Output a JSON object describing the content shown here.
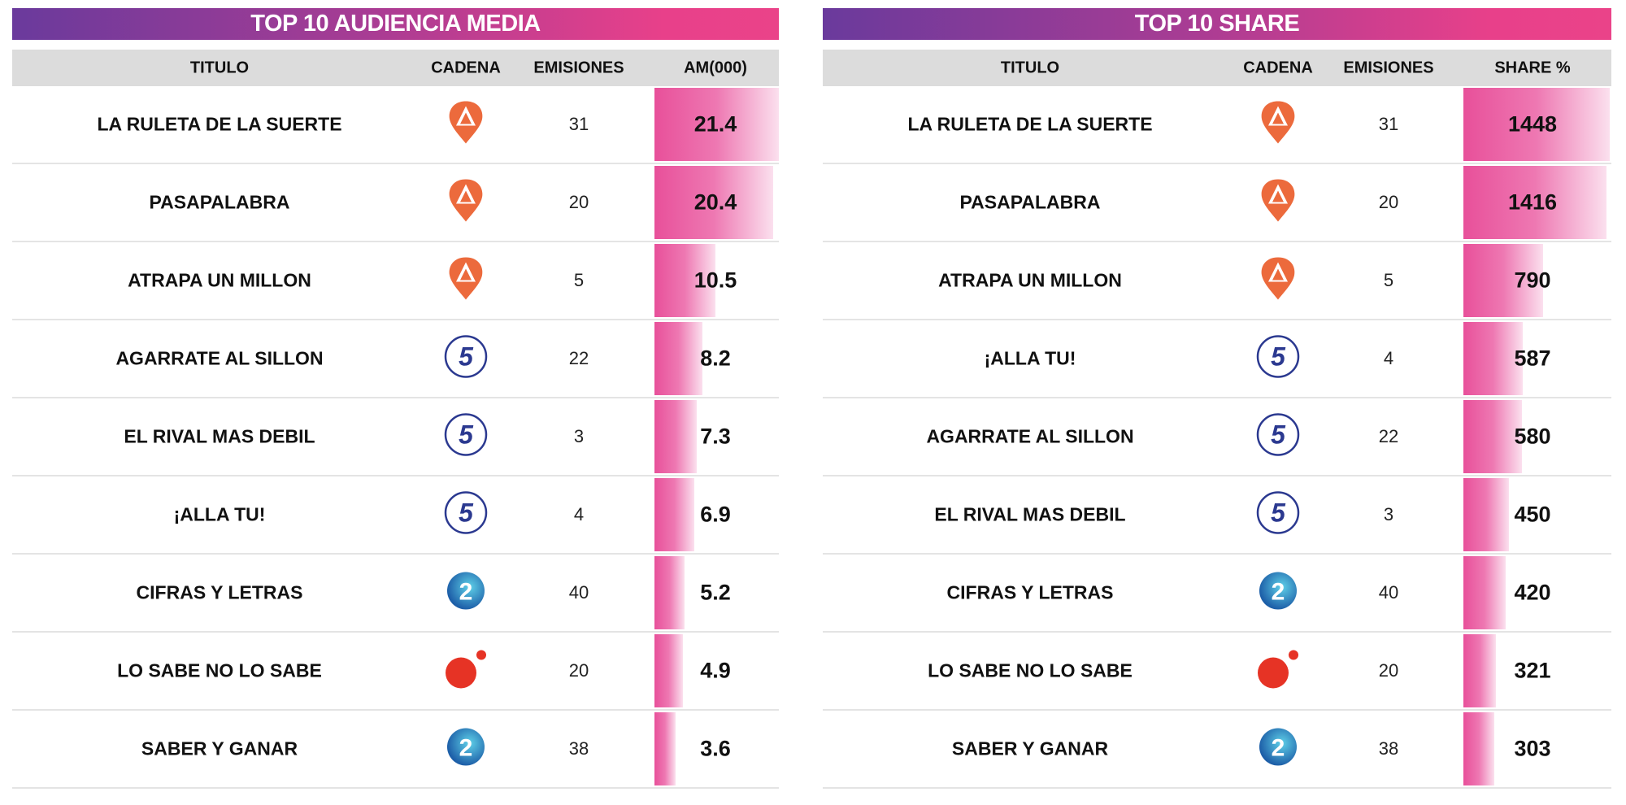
{
  "colors": {
    "accent_pink": "#e8509a",
    "header_purple": "#6a3a9c",
    "antena3": "#ec6a3c",
    "telecinco": "#2b3990",
    "la2": "#2a86c9",
    "cuatro": "#e63325"
  },
  "chart_data": [
    {
      "type": "table",
      "title": "TOP 10 AUDIENCIA MEDIA",
      "columns": [
        "TITULO",
        "CADENA",
        "EMISIONES",
        "AM(000)"
      ],
      "rows": [
        {
          "titulo": "LA RULETA DE LA SUERTE",
          "cadena": "antena3",
          "emisiones": "31",
          "value": "21.4"
        },
        {
          "titulo": "PASAPALABRA",
          "cadena": "antena3",
          "emisiones": "20",
          "value": "20.4"
        },
        {
          "titulo": "ATRAPA UN MILLON",
          "cadena": "antena3",
          "emisiones": "5",
          "value": "10.5"
        },
        {
          "titulo": "AGARRATE AL SILLON",
          "cadena": "telecinco",
          "emisiones": "22",
          "value": "8.2"
        },
        {
          "titulo": "EL RIVAL MAS DEBIL",
          "cadena": "telecinco",
          "emisiones": "3",
          "value": "7.3"
        },
        {
          "titulo": "¡ALLA TU!",
          "cadena": "telecinco",
          "emisiones": "4",
          "value": "6.9"
        },
        {
          "titulo": "CIFRAS Y LETRAS",
          "cadena": "la2",
          "emisiones": "40",
          "value": "5.2"
        },
        {
          "titulo": "LO SABE NO LO SABE",
          "cadena": "cuatro",
          "emisiones": "20",
          "value": "4.9"
        },
        {
          "titulo": "SABER Y GANAR",
          "cadena": "la2",
          "emisiones": "38",
          "value": "3.6"
        }
      ]
    },
    {
      "type": "table",
      "title": "TOP 10 SHARE",
      "columns": [
        "TITULO",
        "CADENA",
        "EMISIONES",
        "SHARE %"
      ],
      "rows": [
        {
          "titulo": "LA RULETA DE LA SUERTE",
          "cadena": "antena3",
          "emisiones": "31",
          "value": "1448"
        },
        {
          "titulo": "PASAPALABRA",
          "cadena": "antena3",
          "emisiones": "20",
          "value": "1416"
        },
        {
          "titulo": "ATRAPA UN MILLON",
          "cadena": "antena3",
          "emisiones": "5",
          "value": "790"
        },
        {
          "titulo": "¡ALLA TU!",
          "cadena": "telecinco",
          "emisiones": "4",
          "value": "587"
        },
        {
          "titulo": "AGARRATE AL SILLON",
          "cadena": "telecinco",
          "emisiones": "22",
          "value": "580"
        },
        {
          "titulo": "EL RIVAL MAS DEBIL",
          "cadena": "telecinco",
          "emisiones": "3",
          "value": "450"
        },
        {
          "titulo": "CIFRAS Y LETRAS",
          "cadena": "la2",
          "emisiones": "40",
          "value": "420"
        },
        {
          "titulo": "LO SABE NO LO SABE",
          "cadena": "cuatro",
          "emisiones": "20",
          "value": "321"
        },
        {
          "titulo": "SABER Y GANAR",
          "cadena": "la2",
          "emisiones": "38",
          "value": "303"
        }
      ]
    }
  ]
}
